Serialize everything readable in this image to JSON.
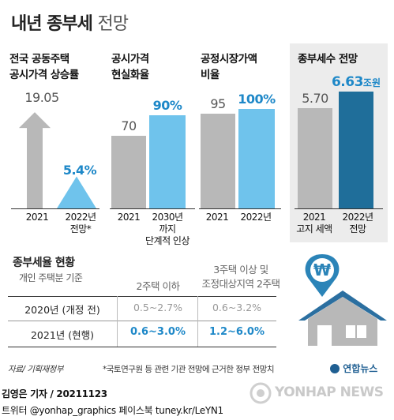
{
  "title": {
    "main": "내년 종부세",
    "sub": "전망"
  },
  "chart_data": [
    {
      "type": "bar",
      "title": "전국 공동주택 공시가격 상승률",
      "categories": [
        "2021",
        "2022년 전망*"
      ],
      "values": [
        19.05,
        5.4
      ],
      "value_labels": [
        "19.05",
        "5.4%"
      ],
      "ylim": [
        0,
        20
      ]
    },
    {
      "type": "bar",
      "title": "공시가격 현실화율",
      "categories": [
        "2021",
        "2030년 까지 단계적 인상"
      ],
      "values": [
        70,
        90
      ],
      "value_labels": [
        "70",
        "90%"
      ]
    },
    {
      "type": "bar",
      "title": "공정시장가액 비율",
      "categories": [
        "2021",
        "2022년"
      ],
      "values": [
        95,
        100
      ],
      "value_labels": [
        "95",
        "100%"
      ]
    },
    {
      "type": "bar",
      "title": "종부세수 전망",
      "categories": [
        "2021 고지 세액",
        "2022년 전망"
      ],
      "values": [
        5.7,
        6.63
      ],
      "value_labels": [
        "5.70",
        "6.63"
      ],
      "unit": "조원"
    },
    {
      "type": "table",
      "title": "종부세율 현황",
      "subtitle": "개인 주택분 기준",
      "columns": [
        "2주택 이하",
        "3주택 이상 및 조정대상지역 2주택"
      ],
      "rows": [
        {
          "label": "2020년 (개정 전)",
          "values": [
            "0.5~2.7%",
            "0.6~3.2%"
          ]
        },
        {
          "label": "2021년 (현행)",
          "values": [
            "0.6~3.0%",
            "1.2~6.0%"
          ]
        }
      ]
    }
  ],
  "panel1": {
    "h1": "전국 공동주택",
    "h2": "공시가격 상승률",
    "x1": "2021",
    "x2a": "2022년",
    "x2b": "전망*"
  },
  "panel2": {
    "h1": "공시가격",
    "h2": "현실화율",
    "x1": "2021",
    "x2a": "2030년",
    "x2b": "까지",
    "x2c": "단계적 인상"
  },
  "panel3": {
    "h1": "공정시장가액",
    "h2": "비율",
    "x1": "2021",
    "x2": "2022년"
  },
  "panel4": {
    "h1": "종부세수 전망",
    "unit": "조원",
    "x1a": "2021",
    "x1b": "고지 세액",
    "x2a": "2022년",
    "x2b": "전망"
  },
  "table": {
    "title": "종부세율 현황",
    "subtitle": "개인 주택분 기준",
    "col1": "2주택 이하",
    "col2a": "3주택 이상 및",
    "col2b": "조정대상지역 2주택"
  },
  "icon": {
    "won_symbol": "₩"
  },
  "notes": {
    "source": "자료/ 기획재정부",
    "footnote": "*국토연구원 등 관련 기관 전망에 근거한 정부 전망치",
    "agency_small": "연합뉴스",
    "watermark": "YONHAP NEWS"
  },
  "footer": {
    "line1": "김영은 기자 / 20211123",
    "line2": "트위터 @yonhap_graphics  페이스북 tuney.kr/LeYN1"
  },
  "colors": {
    "gray": "#b8b8b8",
    "light_blue": "#6fc3ec",
    "navy": "#1f6e9a",
    "highlight_text": "#1e88c8"
  }
}
